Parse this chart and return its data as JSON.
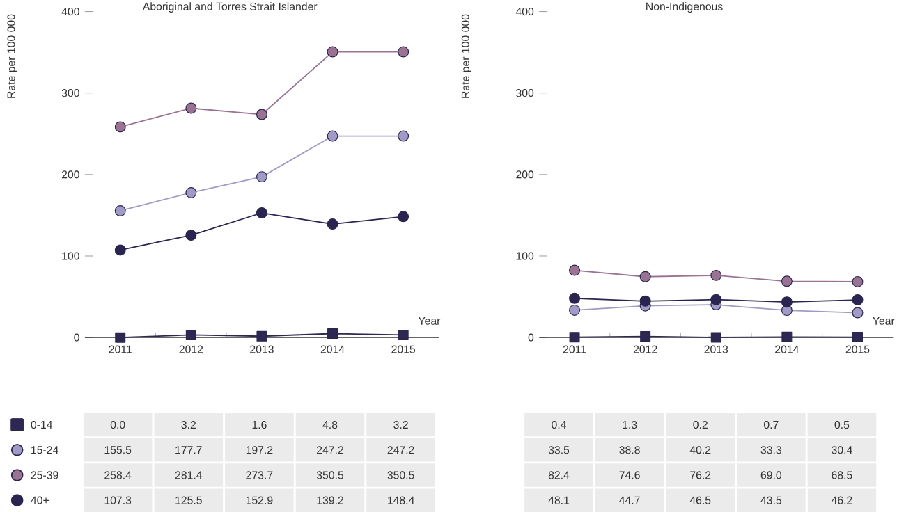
{
  "chart_data": [
    {
      "type": "line",
      "title": "Aboriginal and Torres Strait Islander",
      "ylabel": "Rate per 100 000",
      "xlabel": "Year",
      "categories": [
        "2011",
        "2012",
        "2013",
        "2014",
        "2015"
      ],
      "ylim": [
        0,
        400
      ],
      "yticks": [
        0,
        100,
        200,
        300,
        400
      ],
      "legend": "bottom",
      "series": [
        {
          "name": "0-14",
          "color": "#2c2852",
          "marker": "square",
          "values": [
            0.0,
            3.2,
            1.6,
            4.8,
            3.2
          ],
          "value_labels": [
            "0.0",
            "3.2",
            "1.6",
            "4.8",
            "3.2"
          ]
        },
        {
          "name": "15-24",
          "color": "#a09bc6",
          "marker": "circle",
          "values": [
            155.5,
            177.7,
            197.2,
            247.2,
            247.2
          ],
          "value_labels": [
            "155.5",
            "177.7",
            "197.2",
            "247.2",
            "247.2"
          ]
        },
        {
          "name": "25-39",
          "color": "#9a7393",
          "marker": "circle",
          "values": [
            258.4,
            281.4,
            273.7,
            350.5,
            350.5
          ],
          "value_labels": [
            "258.4",
            "281.4",
            "273.7",
            "350.5",
            "350.5"
          ]
        },
        {
          "name": "40+",
          "color": "#2a2550",
          "marker": "circle",
          "values": [
            107.3,
            125.5,
            152.9,
            139.2,
            148.4
          ],
          "value_labels": [
            "107.3",
            "125.5",
            "152.9",
            "139.2",
            "148.4"
          ]
        }
      ]
    },
    {
      "type": "line",
      "title": "Non-Indigenous",
      "ylabel": "Rate per 100 000",
      "xlabel": "Year",
      "categories": [
        "2011",
        "2012",
        "2013",
        "2014",
        "2015"
      ],
      "ylim": [
        0,
        400
      ],
      "yticks": [
        0,
        100,
        200,
        300,
        400
      ],
      "series": [
        {
          "color": "#2c2852",
          "marker": "square",
          "values": [
            0.4,
            1.3,
            0.2,
            0.7,
            0.5
          ],
          "value_labels": [
            "0.4",
            "1.3",
            "0.2",
            "0.7",
            "0.5"
          ]
        },
        {
          "color": "#a09bc6",
          "marker": "circle",
          "values": [
            33.5,
            38.8,
            40.2,
            33.3,
            30.4
          ],
          "value_labels": [
            "33.5",
            "38.8",
            "40.2",
            "33.3",
            "30.4"
          ]
        },
        {
          "color": "#9a7393",
          "marker": "circle",
          "values": [
            82.4,
            74.6,
            76.2,
            69.0,
            68.5
          ],
          "value_labels": [
            "82.4",
            "74.6",
            "76.2",
            "69.0",
            "68.5"
          ]
        },
        {
          "color": "#2a2550",
          "marker": "circle",
          "values": [
            48.1,
            44.7,
            46.5,
            43.5,
            46.2
          ],
          "value_labels": [
            "48.1",
            "44.7",
            "46.5",
            "43.5",
            "46.2"
          ]
        }
      ]
    }
  ]
}
